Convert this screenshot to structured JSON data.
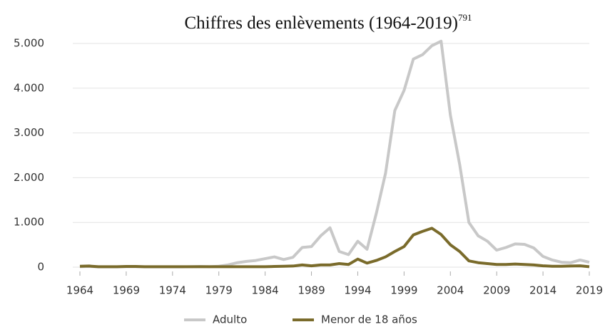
{
  "chart_data": {
    "type": "line",
    "title": "Chiffres des enlèvements (1964-2019)",
    "title_note": "791",
    "x": [
      1964,
      1965,
      1966,
      1967,
      1968,
      1969,
      1970,
      1971,
      1972,
      1973,
      1974,
      1975,
      1976,
      1977,
      1978,
      1979,
      1980,
      1981,
      1982,
      1983,
      1984,
      1985,
      1986,
      1987,
      1988,
      1989,
      1990,
      1991,
      1992,
      1993,
      1994,
      1995,
      1996,
      1997,
      1998,
      1999,
      2000,
      2001,
      2002,
      2003,
      2004,
      2005,
      2006,
      2007,
      2008,
      2009,
      2010,
      2011,
      2012,
      2013,
      2014,
      2015,
      2016,
      2017,
      2018,
      2019
    ],
    "series": [
      {
        "name": "Adulto",
        "color": "#c8c8c8",
        "values": [
          10,
          15,
          5,
          5,
          5,
          10,
          10,
          5,
          5,
          5,
          5,
          5,
          10,
          15,
          10,
          20,
          50,
          100,
          130,
          150,
          190,
          230,
          170,
          220,
          440,
          460,
          700,
          880,
          350,
          280,
          580,
          400,
          1200,
          2100,
          3500,
          3950,
          4650,
          4750,
          4950,
          5050,
          3400,
          2300,
          1000,
          700,
          580,
          380,
          440,
          520,
          510,
          430,
          240,
          160,
          110,
          100,
          160,
          110
        ]
      },
      {
        "name": "Menor de 18 años",
        "color": "#7a6b2b",
        "values": [
          20,
          25,
          10,
          10,
          10,
          15,
          15,
          10,
          10,
          10,
          10,
          10,
          10,
          10,
          10,
          10,
          10,
          10,
          10,
          10,
          10,
          15,
          20,
          25,
          50,
          30,
          50,
          50,
          80,
          60,
          180,
          90,
          150,
          230,
          350,
          460,
          720,
          800,
          870,
          730,
          500,
          350,
          140,
          100,
          80,
          60,
          60,
          70,
          60,
          50,
          30,
          20,
          20,
          25,
          30,
          10
        ]
      }
    ],
    "xlim": [
      1964,
      2019
    ],
    "xticks": [
      1964,
      1969,
      1974,
      1979,
      1984,
      1989,
      1994,
      1999,
      2004,
      2009,
      2014,
      2019
    ],
    "ylim": [
      0,
      5000
    ],
    "yticks": [
      0,
      {
        "value": 1000,
        "label": "1.000"
      },
      {
        "value": 2000,
        "label": "2.000"
      },
      {
        "value": 3000,
        "label": "3.000"
      },
      {
        "value": 4000,
        "label": "4.000"
      },
      {
        "value": 5000,
        "label": "5.000"
      }
    ],
    "grid": true,
    "legend": "bottom"
  }
}
